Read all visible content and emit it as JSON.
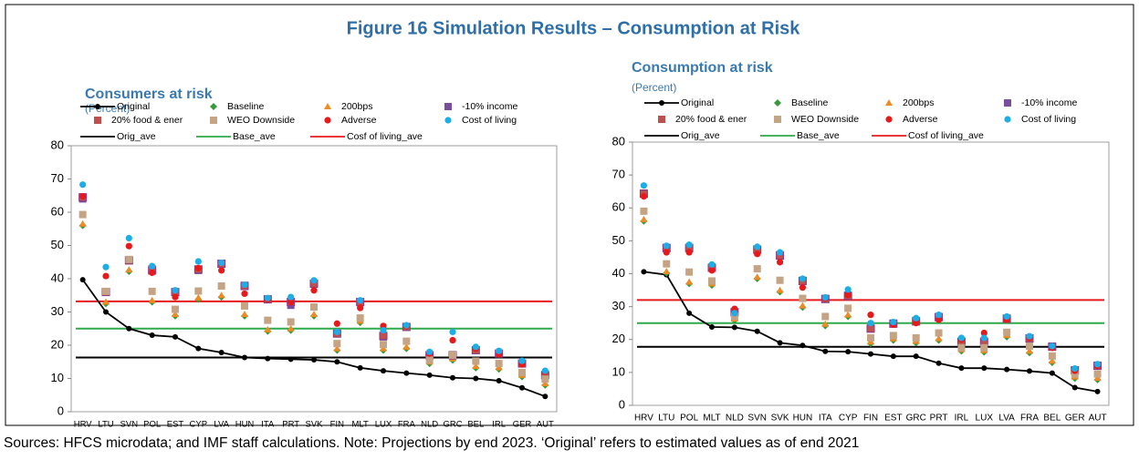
{
  "title": "Figure 16 Simulation Results – Consumption at Risk",
  "note": "Sources: HFCS microdata; and IMF staff calculations. Note: Projections by end 2023. ‘Original’ refers to estimated values as of end 2021",
  "chart_data": [
    {
      "type": "scatter",
      "title": "Consumers at risk",
      "subtitle": "(Percent)",
      "categories": [
        "HRV",
        "LTU",
        "SVN",
        "POL",
        "EST",
        "CYP",
        "LVA",
        "HUN",
        "ITA",
        "PRT",
        "SVK",
        "FIN",
        "MLT",
        "LUX",
        "FRA",
        "NLD",
        "GRC",
        "BEL",
        "IRL",
        "GER",
        "AUT"
      ],
      "ylim": [
        0,
        80
      ],
      "yticks": [
        0,
        10,
        20,
        30,
        40,
        50,
        60,
        70,
        80
      ],
      "series": [
        {
          "name": "Original",
          "color": "#000000",
          "marker": "line-circle",
          "values": [
            39.7,
            30,
            25,
            23,
            22.5,
            19,
            17.8,
            16.3,
            16,
            15.8,
            15.6,
            15,
            13.2,
            12.3,
            11.6,
            11,
            10.2,
            10,
            9.3,
            7.2,
            4.6
          ]
        },
        {
          "name": "Baseline",
          "color": "#3a9a3a",
          "marker": "diamond",
          "values": [
            56,
            32.5,
            42.2,
            33,
            28.8,
            33.8,
            34.5,
            28.8,
            24.2,
            24.5,
            28.8,
            18.5,
            26.8,
            18.5,
            19,
            14.5,
            15.5,
            13.2,
            12.8,
            10.5,
            8
          ]
        },
        {
          "name": "200bps",
          "color": "#f08a24",
          "marker": "triangle",
          "values": [
            56.5,
            33,
            42.7,
            33.5,
            29.3,
            34.3,
            35,
            29.3,
            24.7,
            25,
            29.3,
            19,
            27.3,
            19,
            19.5,
            15,
            16,
            13.7,
            13.3,
            11,
            8.5
          ]
        },
        {
          "name": "-10% income",
          "color": "#7a4e9c",
          "marker": "square",
          "values": [
            64,
            36,
            45.5,
            43,
            36,
            42.5,
            44.5,
            38,
            33.8,
            32,
            38.5,
            23.5,
            32.8,
            22.5,
            25.5,
            17,
            16.8,
            18.5,
            17.5,
            14.5,
            11
          ]
        },
        {
          "name": "20% food & ener",
          "color": "#c0504d",
          "marker": "square",
          "values": [
            64.5,
            36,
            45.5,
            42.5,
            36,
            42.8,
            44.5,
            37.8,
            33.8,
            33,
            38.5,
            23.5,
            33,
            22.8,
            25.5,
            17,
            17,
            18.5,
            17.5,
            14.5,
            11
          ]
        },
        {
          "name": "WEO Downside",
          "color": "#c4a484",
          "marker": "square",
          "values": [
            59.3,
            36.2,
            45.8,
            36.2,
            30.8,
            36.3,
            37.8,
            31.8,
            27.5,
            27,
            31.5,
            20.5,
            28.2,
            20.2,
            21.2,
            15.5,
            17,
            15.2,
            14.5,
            11.8,
            9.8
          ]
        },
        {
          "name": "Adverse",
          "color": "#e8191b",
          "marker": "circle",
          "values": [
            64.8,
            40.8,
            49.8,
            41.8,
            34.5,
            43.2,
            42.5,
            35.5,
            33.8,
            33,
            36.5,
            26.5,
            31.2,
            25.8,
            25.8,
            17.5,
            21.5,
            19,
            17.2,
            14.2,
            12
          ]
        },
        {
          "name": "Cost of living",
          "color": "#1eaee6",
          "marker": "circle",
          "values": [
            68.3,
            43.5,
            52.2,
            43.8,
            36.5,
            45.2,
            44.8,
            38.2,
            34.2,
            34.5,
            39.5,
            24,
            33.5,
            24.5,
            26,
            18,
            24,
            19.5,
            18.3,
            15.3,
            12.3
          ]
        }
      ],
      "lines": [
        {
          "name": "Orig_ave",
          "color": "#000000",
          "value": 16.3
        },
        {
          "name": "Base_ave",
          "color": "#2eaa4a",
          "value": 25
        },
        {
          "name": "Cosf of living_ave",
          "color": "#e8191b",
          "value": 33.2
        }
      ]
    },
    {
      "type": "scatter",
      "title": "Consumption at risk",
      "subtitle": "(Percent)",
      "categories": [
        "HRV",
        "LTU",
        "POL",
        "MLT",
        "NLD",
        "SVN",
        "SVK",
        "HUN",
        "ITA",
        "CYP",
        "FIN",
        "EST",
        "GRC",
        "PRT",
        "IRL",
        "LUX",
        "LVA",
        "FRA",
        "BEL",
        "GER",
        "AUT"
      ],
      "ylim": [
        0,
        80
      ],
      "yticks": [
        0,
        10,
        20,
        30,
        40,
        50,
        60,
        70,
        80
      ],
      "series": [
        {
          "name": "Original",
          "color": "#000000",
          "marker": "line-circle",
          "values": [
            40.6,
            39.7,
            28,
            23.8,
            23.7,
            22.5,
            19,
            18.2,
            16.4,
            16.3,
            15.6,
            14.9,
            14.9,
            12.8,
            11.3,
            11.3,
            10.9,
            10.4,
            9.8,
            5.4,
            4.2
          ]
        },
        {
          "name": "Baseline",
          "color": "#3a9a3a",
          "marker": "diamond",
          "values": [
            56,
            40.2,
            37,
            36.5,
            25.8,
            38.5,
            34.5,
            29.8,
            24.2,
            27,
            18.8,
            19.8,
            19,
            19.8,
            16.5,
            16.2,
            20.8,
            16,
            13,
            8.2,
            7.8
          ]
        },
        {
          "name": "200bps",
          "color": "#f08a24",
          "marker": "triangle",
          "values": [
            56.5,
            40.7,
            37.5,
            37,
            26.3,
            39,
            35,
            30.3,
            24.7,
            27.5,
            19.3,
            20.3,
            19.5,
            20.3,
            17,
            16.7,
            21.3,
            16.5,
            13.5,
            8.7,
            8.3
          ]
        },
        {
          "name": "-10% income",
          "color": "#7a4e9c",
          "marker": "square",
          "values": [
            64.5,
            48,
            48,
            42,
            28,
            47.5,
            45.8,
            38,
            32.5,
            33.5,
            23.5,
            25,
            25.8,
            27,
            19.5,
            19.5,
            26.5,
            20.5,
            18,
            10.8,
            12.2
          ]
        },
        {
          "name": "20% food & ener",
          "color": "#c0504d",
          "marker": "square",
          "values": [
            64.3,
            47.8,
            47.8,
            41.8,
            28.3,
            47.3,
            45.5,
            37.8,
            32.3,
            33.2,
            23.3,
            24.8,
            25.5,
            26.8,
            19.3,
            19.3,
            26.3,
            20.3,
            17.8,
            10.6,
            12
          ]
        },
        {
          "name": "WEO Downside",
          "color": "#c4a484",
          "marker": "square",
          "values": [
            59,
            43,
            40.5,
            37.8,
            27,
            41.5,
            38,
            32.5,
            27,
            29.5,
            20.5,
            21.2,
            20.5,
            22,
            17.5,
            17.5,
            22.2,
            18,
            15,
            9.5,
            9.5
          ]
        },
        {
          "name": "Adverse",
          "color": "#e8191b",
          "marker": "circle",
          "values": [
            63.5,
            46.5,
            46.5,
            41,
            29.3,
            46,
            43.5,
            35.8,
            32.5,
            33.5,
            27.5,
            24.5,
            25,
            26,
            20,
            22,
            26,
            20.5,
            17.5,
            10.5,
            12
          ]
        },
        {
          "name": "Cost of living",
          "color": "#1eaee6",
          "marker": "circle",
          "values": [
            66.8,
            48.5,
            48.8,
            42.8,
            28,
            48.2,
            46.5,
            38.5,
            32.8,
            35.2,
            25,
            25.3,
            26.5,
            27.5,
            20.5,
            20.5,
            27,
            21,
            18,
            11.2,
            12.5
          ]
        }
      ],
      "lines": [
        {
          "name": "Orig_ave",
          "color": "#000000",
          "value": 17.8
        },
        {
          "name": "Base_ave",
          "color": "#2eaa4a",
          "value": 25
        },
        {
          "name": "Cosf of living_ave",
          "color": "#e8191b",
          "value": 32
        }
      ]
    }
  ]
}
